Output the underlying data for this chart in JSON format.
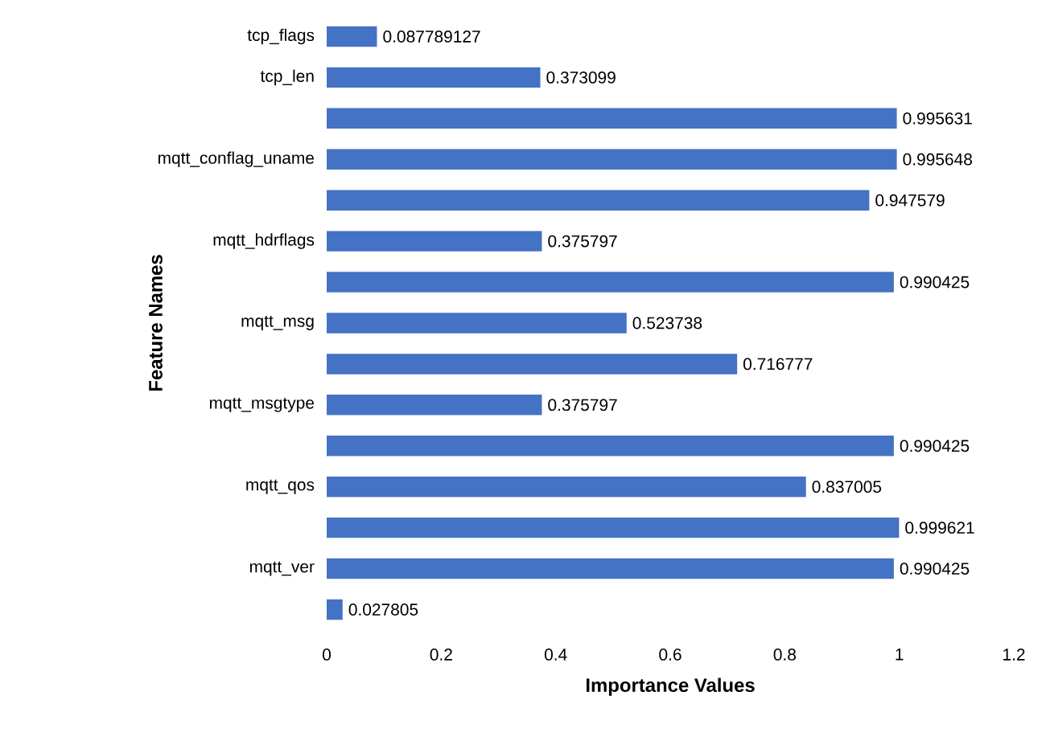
{
  "chart_data": {
    "type": "bar",
    "orientation": "horizontal",
    "xlabel": "Importance Values",
    "ylabel": "Feature Names",
    "categories": [
      "tcp_flags",
      "tcp_len",
      null,
      "mqtt_conflag_uname",
      null,
      "mqtt_hdrflags",
      null,
      "mqtt_msg",
      null,
      "mqtt_msgtype",
      null,
      "mqtt_qos",
      null,
      "mqtt_ver",
      null
    ],
    "values": [
      0.087789127,
      0.373099,
      0.995631,
      0.995648,
      0.947579,
      0.375797,
      0.990425,
      0.523738,
      0.716777,
      0.375797,
      0.990425,
      0.837005,
      0.999621,
      0.990425,
      0.027805
    ],
    "color": "#4472c4",
    "data_labels": true,
    "xlim": [
      0,
      1.2
    ],
    "xticks": [
      0,
      0.2,
      0.4,
      0.6,
      0.8,
      1,
      1.2
    ]
  }
}
